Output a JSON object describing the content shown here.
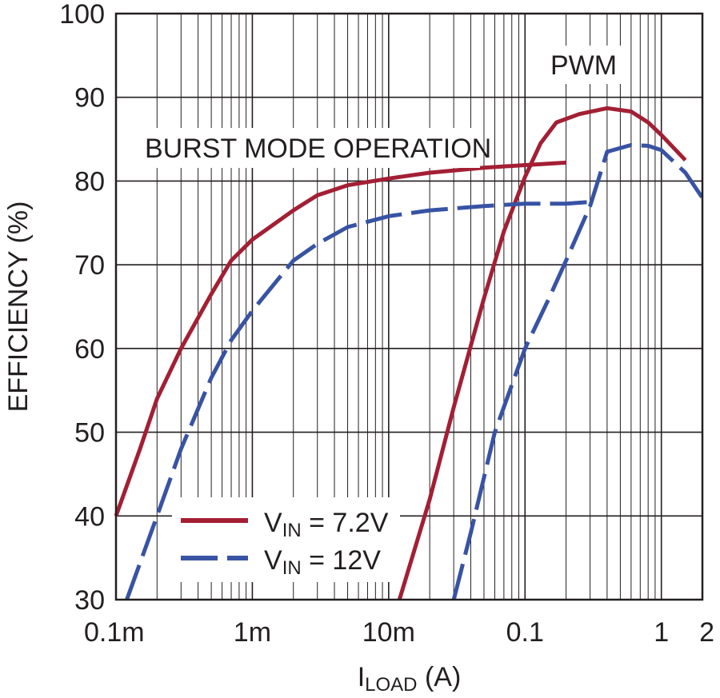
{
  "chart_data": {
    "type": "line",
    "title": "",
    "xlabel": {
      "main": "I",
      "sub": "LOAD",
      "unit": " (A)"
    },
    "ylabel": "EFFICIENCY (%)",
    "xscale": "log",
    "xlim": [
      0.0001,
      2
    ],
    "ylim": [
      30,
      100
    ],
    "grid": true,
    "x_ticks": [
      {
        "value": 0.0001,
        "label": "0.1m"
      },
      {
        "value": 0.001,
        "label": "1m"
      },
      {
        "value": 0.01,
        "label": "10m"
      },
      {
        "value": 0.1,
        "label": "0.1"
      },
      {
        "value": 1,
        "label": "1"
      },
      {
        "value": 2,
        "label": "2"
      }
    ],
    "y_ticks": [
      30,
      40,
      50,
      60,
      70,
      80,
      90,
      100
    ],
    "annotations": [
      "BURST MODE OPERATION",
      "PWM"
    ],
    "legend_position": "bottom-left",
    "series": [
      {
        "name": "VIN = 7.2V",
        "legend_main": "V",
        "legend_sub": "IN",
        "legend_rest": " = 7.2V",
        "color": "#a31f34",
        "style": "solid",
        "mode": "Burst Mode",
        "points": [
          [
            0.0001,
            40
          ],
          [
            0.00015,
            48
          ],
          [
            0.0002,
            54
          ],
          [
            0.0003,
            60
          ],
          [
            0.0005,
            66.5
          ],
          [
            0.0007,
            70.5
          ],
          [
            0.001,
            73
          ],
          [
            0.002,
            76.5
          ],
          [
            0.003,
            78.3
          ],
          [
            0.005,
            79.5
          ],
          [
            0.01,
            80.3
          ],
          [
            0.02,
            81
          ],
          [
            0.05,
            81.6
          ],
          [
            0.1,
            81.9
          ],
          [
            0.2,
            82.2
          ]
        ]
      },
      {
        "name": "VIN = 7.2V",
        "legend_main": "V",
        "legend_sub": "IN",
        "legend_rest": " = 7.2V",
        "color": "#a31f34",
        "style": "solid",
        "mode": "PWM",
        "points": [
          [
            0.012,
            30
          ],
          [
            0.02,
            42
          ],
          [
            0.03,
            53
          ],
          [
            0.05,
            66
          ],
          [
            0.07,
            74
          ],
          [
            0.1,
            80.5
          ],
          [
            0.13,
            84.5
          ],
          [
            0.17,
            87
          ],
          [
            0.25,
            88
          ],
          [
            0.4,
            88.7
          ],
          [
            0.6,
            88.3
          ],
          [
            0.8,
            87
          ],
          [
            1,
            85.5
          ],
          [
            1.5,
            82.5
          ]
        ]
      },
      {
        "name": "VIN = 12V",
        "legend_main": "V",
        "legend_sub": "IN",
        "legend_rest": " = 12V",
        "color": "#3853a4",
        "style": "dashed",
        "mode": "Burst Mode",
        "points": [
          [
            0.00012,
            30
          ],
          [
            0.0002,
            40
          ],
          [
            0.0003,
            48
          ],
          [
            0.0005,
            56.5
          ],
          [
            0.0007,
            61
          ],
          [
            0.001,
            64.5
          ],
          [
            0.002,
            70.5
          ],
          [
            0.003,
            72.5
          ],
          [
            0.005,
            74.5
          ],
          [
            0.01,
            75.8
          ],
          [
            0.02,
            76.5
          ],
          [
            0.05,
            77
          ],
          [
            0.1,
            77.3
          ],
          [
            0.2,
            77.3
          ],
          [
            0.3,
            77.5
          ]
        ]
      },
      {
        "name": "VIN = 12V",
        "legend_main": "V",
        "legend_sub": "IN",
        "legend_rest": " = 12V",
        "color": "#3853a4",
        "style": "dashed",
        "mode": "PWM",
        "points": [
          [
            0.03,
            30
          ],
          [
            0.04,
            38
          ],
          [
            0.06,
            50
          ],
          [
            0.1,
            60
          ],
          [
            0.15,
            66
          ],
          [
            0.2,
            70.5
          ],
          [
            0.3,
            77
          ],
          [
            0.4,
            83.5
          ],
          [
            0.6,
            84.3
          ],
          [
            0.8,
            84.2
          ],
          [
            1,
            83.7
          ],
          [
            1.5,
            81
          ],
          [
            2,
            78
          ]
        ]
      }
    ]
  }
}
